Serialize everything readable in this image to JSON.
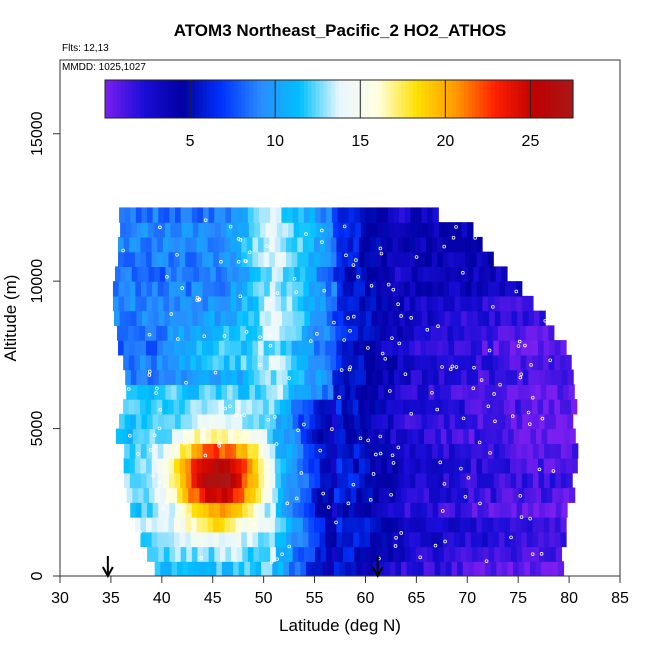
{
  "chart_data": {
    "type": "heatmap",
    "title": "ATOM3 Northeast_Pacific_2 HO2_ATHOS",
    "flights_label": "Flts: 12,13",
    "dates_label": "MMDD: 1025,1027",
    "xlabel": "Latitude (deg N)",
    "ylabel": "Altitude (m)",
    "xlim": [
      30,
      85
    ],
    "ylim": [
      0,
      17500
    ],
    "x_ticks": [
      "30",
      "35",
      "40",
      "45",
      "50",
      "55",
      "60",
      "65",
      "70",
      "75",
      "80",
      "85"
    ],
    "y_ticks": [
      "0",
      "5000",
      "10000",
      "15000"
    ],
    "colorbar": {
      "min": 0,
      "max": 27.5,
      "ticks": [
        "5",
        "10",
        "15",
        "20",
        "25"
      ],
      "colors": [
        "#7b1ff0",
        "#1a0dd8",
        "#0000a0",
        "#0033ff",
        "#2a8cff",
        "#00c0ff",
        "#e8f6ff",
        "#ffffe0",
        "#ffe000",
        "#ff9900",
        "#ff2000",
        "#c00000",
        "#a81818"
      ]
    },
    "arrows_latitude": [
      34.7,
      61.2
    ],
    "field": {
      "lat_start": 35,
      "lat_end": 80.3,
      "alt_bins_m": [
        0,
        500,
        1000,
        1500,
        2000,
        2500,
        3000,
        3500,
        4000,
        4500,
        5000,
        5500,
        6000,
        6500,
        7000,
        7500,
        8000,
        8500,
        9000,
        9500,
        10000,
        10500,
        11000,
        11500,
        12000,
        12500
      ]
    }
  }
}
